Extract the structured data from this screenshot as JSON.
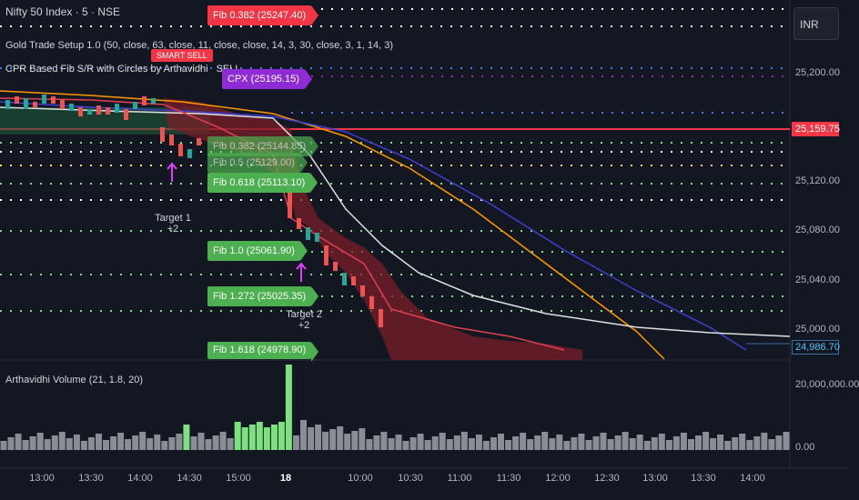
{
  "header": {
    "symbol_title": "Nifty 50 Index · 5 · NSE",
    "currency_button": "INR"
  },
  "indicators": {
    "gold_setup": "Gold Trade Setup 1.0 (50, close, 63, close, 11, close, close, 14, 3, 30, close, 3, 1, 14, 3)",
    "cpr_fib": "CPR Based Fib S/R with Circles by Arthavidhi",
    "sell_signal": "SELL",
    "smart_sell": "SMART SELL",
    "volume_title": "Arthavidhi Volume (21, 1.8, 20)"
  },
  "fib_labels": [
    {
      "text": "Fib 0.382 (25247.40)",
      "color": "#f23645"
    },
    {
      "text": "CPX (25195.15)",
      "color": "#8e2bd4"
    },
    {
      "text": "Fib 0.382 (25144.85)",
      "color": "#4caf50"
    },
    {
      "text": "Fib 0.5 (25129.00)",
      "color": "#4caf50"
    },
    {
      "text": "Fib 0.618 (25113.10)",
      "color": "#4caf50"
    },
    {
      "text": "Fib 1.0 (25061.90)",
      "color": "#4caf50"
    },
    {
      "text": "Fib 1.272 (25025.35)",
      "color": "#4caf50"
    },
    {
      "text": "Fib 1.618 (24978.90)",
      "color": "#4caf50"
    }
  ],
  "targets": [
    {
      "label": "Target 1",
      "sub": "+2"
    },
    {
      "label": "Target 2",
      "sub": "+2"
    }
  ],
  "price_axis": {
    "ticks": [
      "25,200.00",
      "25,120.00",
      "25,080.00",
      "25,040.00",
      "25,000.00"
    ],
    "current_price": "25,159.75",
    "current_color": "#f23645",
    "last_close": "24,986.70"
  },
  "volume_axis": {
    "ticks": [
      "20,000,000.00",
      "0.00"
    ]
  },
  "time_axis": {
    "labels": [
      "13:00",
      "13:30",
      "14:00",
      "14:30",
      "15:00",
      "18",
      "10:00",
      "10:30",
      "11:00",
      "11:30",
      "12:00",
      "12:30",
      "13:00",
      "13:30",
      "14:00"
    ]
  },
  "colors": {
    "bull": "#26a69a",
    "bear": "#ef5350",
    "volume_high": "#7ee07e",
    "volume_normal": "#8a8d96",
    "background": "#131722"
  }
}
